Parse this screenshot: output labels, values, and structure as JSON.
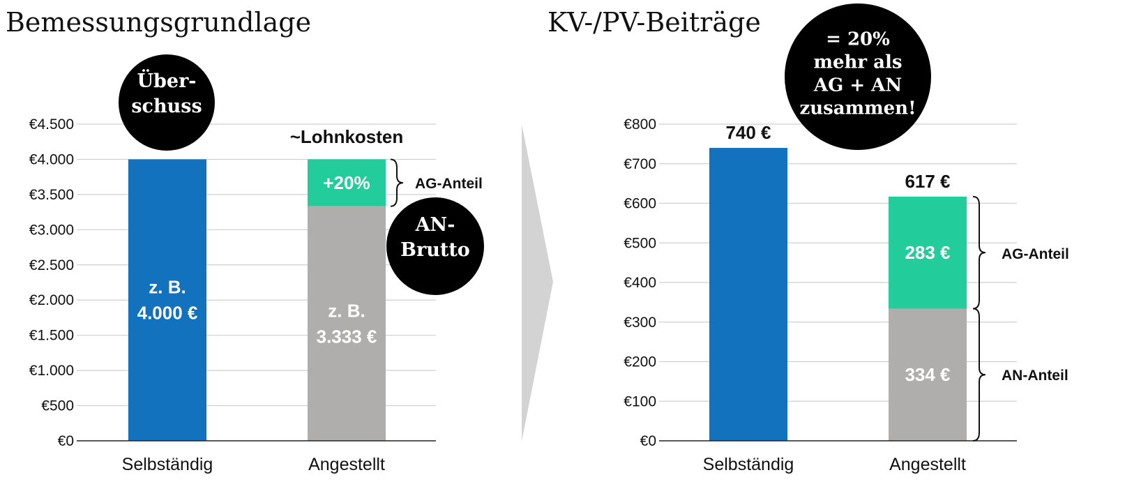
{
  "chart_data": [
    {
      "type": "bar",
      "title": "Bemessungsgrundlage",
      "categories": [
        "Selbständig",
        "Angestellt"
      ],
      "series": [
        {
          "name": "",
          "values": [
            4000,
            3333
          ],
          "colors": [
            "#1372bd",
            "#b0adad"
          ],
          "labels": [
            "z. B.|4.000 €",
            "z. B.|3.333 €"
          ]
        },
        {
          "name": "",
          "values": [
            0,
            667
          ],
          "colors": [
            "#1372bd",
            "#23cd9b"
          ],
          "labels": [
            "",
            "+20%"
          ]
        }
      ],
      "ylim": [
        0,
        4500
      ],
      "yticks": [
        0,
        500,
        1000,
        1500,
        2000,
        2500,
        3000,
        3500,
        4000,
        4500
      ],
      "ytick_labels": [
        "€0",
        "€500",
        "€1.000",
        "€1.500",
        "€2.000",
        "€2.500",
        "€3.000",
        "€3.500",
        "€4.000",
        "€4.500"
      ],
      "grid": true,
      "annotations": {
        "above_bar_2": "~Lohnkosten",
        "brace_label": "AG-Anteil",
        "bubble_top": "Über-|schuss",
        "bubble_side": "AN-|Brutto"
      }
    },
    {
      "type": "bar",
      "title": "KV-/PV-Beiträge",
      "categories": [
        "Selbständig",
        "Angestellt"
      ],
      "series": [
        {
          "name": "",
          "values": [
            740,
            334
          ],
          "colors": [
            "#1372bd",
            "#b0adad"
          ],
          "labels": [
            "",
            "334 €"
          ]
        },
        {
          "name": "",
          "values": [
            0,
            283
          ],
          "colors": [
            "#1372bd",
            "#23cd9b"
          ],
          "labels": [
            "",
            "283 €"
          ]
        }
      ],
      "totals": [
        "740 €",
        "617 €"
      ],
      "ylim": [
        0,
        800
      ],
      "yticks": [
        0,
        100,
        200,
        300,
        400,
        500,
        600,
        700,
        800
      ],
      "ytick_labels": [
        "€0",
        "€100",
        "€200",
        "€300",
        "€400",
        "€500",
        "€600",
        "€700",
        "€800"
      ],
      "grid": true,
      "annotations": {
        "brace_upper": "AG-Anteil",
        "brace_lower": "AN-Anteil",
        "bubble": "= 20%|mehr als|AG + AN|zusammen!"
      }
    }
  ]
}
